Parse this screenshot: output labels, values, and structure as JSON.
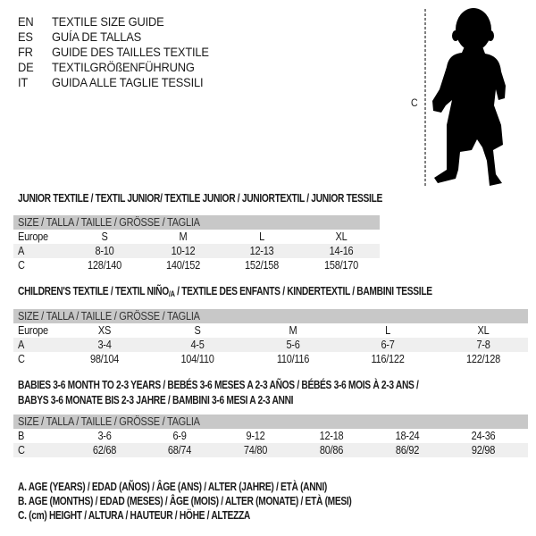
{
  "languages": [
    {
      "code": "EN",
      "title": "TEXTILE SIZE GUIDE"
    },
    {
      "code": "ES",
      "title": "GUÍA DE TALLAS"
    },
    {
      "code": "FR",
      "title": "GUIDE DES TAILLES TEXTILE"
    },
    {
      "code": "DE",
      "title": "TEXTILGRÖßENFÜHRUNG"
    },
    {
      "code": "IT",
      "title": "GUIDA ALLE TAGLIE TESSILI"
    }
  ],
  "figure": {
    "measure_label": "C"
  },
  "junior": {
    "title": "JUNIOR TEXTILE / TEXTIL JUNIOR/ TEXTILE JUNIOR / JUNIORTEXTIL / JUNIOR TESSILE",
    "header": "SIZE / TALLA / TAILLE / GRÖSSE / TAGLIA",
    "rows": [
      {
        "label": "Europe",
        "values": [
          "S",
          "M",
          "L",
          "XL"
        ]
      },
      {
        "label": "A",
        "values": [
          "8-10",
          "10-12",
          "12-13",
          "14-16"
        ]
      },
      {
        "label": "C",
        "values": [
          "128/140",
          "140/152",
          "152/158",
          "158/170"
        ]
      }
    ]
  },
  "children": {
    "title_pre": "CHILDREN'S TEXTILE / TEXTIL NIÑO",
    "title_sub": "/A",
    "title_post": " / TEXTILE DES ENFANTS / KINDERTEXTIL / BAMBINI TESSILE",
    "header": "SIZE / TALLA / TAILLE / GRÖSSE / TAGLIA",
    "rows": [
      {
        "label": "Europe",
        "values": [
          "XS",
          "S",
          "M",
          "L",
          "XL"
        ]
      },
      {
        "label": "A",
        "values": [
          "3-4",
          "4-5",
          "5-6",
          "6-7",
          "7-8"
        ]
      },
      {
        "label": "C",
        "values": [
          "98/104",
          "104/110",
          "110/116",
          "116/122",
          "122/128"
        ]
      }
    ]
  },
  "babies": {
    "title_line1": "BABIES 3-6 MONTH TO 2-3 YEARS / BEBÉS 3-6 MESES A 2-3 AÑOS / BÉBÉS 3-6 MOIS À 2-3 ANS /",
    "title_line2": "BABYS 3-6 MONATE BIS 2-3 JAHRE / BAMBINI 3-6 MESI A 2-3 ANNI",
    "header": "SIZE / TALLA / TAILLE / GRÖSSE / TAGLIA",
    "rows": [
      {
        "label": "B",
        "values": [
          "3-6",
          "6-9",
          "9-12",
          "12-18",
          "18-24",
          "24-36"
        ]
      },
      {
        "label": "C",
        "values": [
          "62/68",
          "68/74",
          "74/80",
          "80/86",
          "86/92",
          "92/98"
        ]
      }
    ]
  },
  "legend": [
    "A. AGE (YEARS) / EDAD (AÑOS) / ÂGE (ANS) / ALTER (JAHRE) / ETÀ (ANNI)",
    "B. AGE (MONTHS) / EDAD (MESES) / ÂGE (MOIS) / ALTER (MONATE) / ETÀ (MESI)",
    "C. (cm) HEIGHT / ALTURA / HAUTEUR / HÖHE / ALTEZZA"
  ]
}
